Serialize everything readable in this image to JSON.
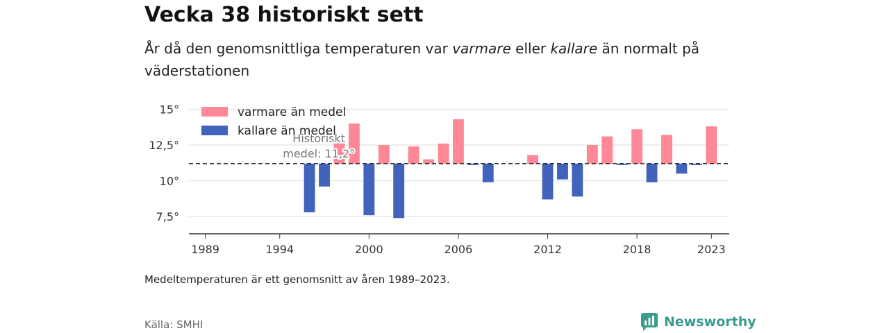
{
  "header": {
    "title": "Vecka 38 historiskt sett",
    "subtitle_part1": "År då den genomsnittliga temperaturen var ",
    "subtitle_em1": "varmare",
    "subtitle_part2": " eller ",
    "subtitle_em2": "kallare",
    "subtitle_part3": " än normalt på väderstationen"
  },
  "chart_data": {
    "type": "bar",
    "baseline": 11.2,
    "baseline_label_line1": "Historiskt",
    "baseline_label_line2": "medel: 11,2°",
    "ylim": [
      6.3,
      15.6
    ],
    "xlim": [
      1987.9,
      2024.2
    ],
    "y_ticks": [
      {
        "value": 15,
        "label": "15°"
      },
      {
        "value": 12.5,
        "label": "12,5°"
      },
      {
        "value": 10,
        "label": "10°"
      },
      {
        "value": 7.5,
        "label": "7,5°"
      }
    ],
    "x_ticks": [
      {
        "value": 1989,
        "label": "1989"
      },
      {
        "value": 1994,
        "label": "1994"
      },
      {
        "value": 2000,
        "label": "2000"
      },
      {
        "value": 2006,
        "label": "2006"
      },
      {
        "value": 2012,
        "label": "2012"
      },
      {
        "value": 2018,
        "label": "2018"
      },
      {
        "value": 2023,
        "label": "2023"
      }
    ],
    "legend": {
      "placement": "top-left",
      "warm_label": "varmare än medel",
      "cold_label": "kallare än medel"
    },
    "colors": {
      "warm": "#ff8796",
      "cold": "#4263bc"
    },
    "x": [
      1996,
      1997,
      1998,
      1999,
      2000,
      2001,
      2002,
      2003,
      2004,
      2005,
      2006,
      2007,
      2008,
      2011,
      2012,
      2013,
      2014,
      2015,
      2016,
      2017,
      2018,
      2019,
      2020,
      2021,
      2022,
      2023
    ],
    "values": [
      7.8,
      9.6,
      12.7,
      14.0,
      7.6,
      12.5,
      7.4,
      12.4,
      11.5,
      12.6,
      14.3,
      11.1,
      9.9,
      11.8,
      8.7,
      10.1,
      8.9,
      12.5,
      13.1,
      11.1,
      13.6,
      9.9,
      13.2,
      10.5,
      11.1,
      13.8
    ]
  },
  "footer": {
    "note": "Medeltemperaturen är ett genomsnitt av åren 1989–2023.",
    "source": "Källa: SMHI",
    "brand": "Newsworthy",
    "brand_color": "#3a9c8c",
    "logo_icon": "newsworthy-logo-icon"
  }
}
